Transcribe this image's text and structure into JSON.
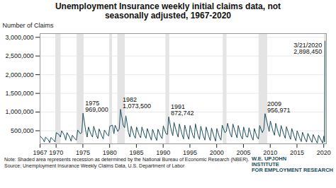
{
  "chart_data": {
    "type": "line",
    "title": "Unemployment Insurance weekly initial claims data, not seasonally adjusted, 1967-2020",
    "y_label": "Number of Claims",
    "notes": [
      "Note: Shaded area represents recession as determined by the National Bureau of Economic Research (NBER).",
      "Source: Unemployment Insurance Weekly Claims Data, U.S. Department of Labor"
    ],
    "logo": [
      "W.E. UPJOHN",
      "INSTITUTE",
      "FOR EMPLOYMENT RESEARCH"
    ],
    "color": "#1d4e5c",
    "grid": true,
    "xlim": [
      1967,
      2020.5
    ],
    "xticks": [
      1967,
      1970,
      1975,
      1980,
      1985,
      1990,
      1995,
      2000,
      2005,
      2010,
      2015,
      2020
    ],
    "ylim": [
      150000,
      3100000
    ],
    "yticks": [
      {
        "value": 500000,
        "label": "500,000"
      },
      {
        "value": 1000000,
        "label": "1,000,000"
      },
      {
        "value": 1500000,
        "label": "1,500,000"
      },
      {
        "value": 2000000,
        "label": "2,000,000"
      },
      {
        "value": 2500000,
        "label": "2,500,000"
      },
      {
        "value": 3000000,
        "label": "3,000,000"
      }
    ],
    "recessions": [
      [
        1969.9,
        1970.9
      ],
      [
        1973.9,
        1975.2
      ],
      [
        1980.0,
        1980.5
      ],
      [
        1981.5,
        1982.9
      ],
      [
        1990.5,
        1991.2
      ],
      [
        2001.2,
        2001.9
      ],
      [
        2007.9,
        2009.5
      ],
      [
        2020.1,
        2020.5
      ]
    ],
    "annotations": [
      {
        "x": 1975.03,
        "y": 969000,
        "label": "1975",
        "value_label": "969,000"
      },
      {
        "x": 1982.03,
        "y": 1073500,
        "label": "1982",
        "value_label": "1,073,500"
      },
      {
        "x": 1991.03,
        "y": 872742,
        "label": "1991",
        "value_label": "872,742"
      },
      {
        "x": 2009.03,
        "y": 956971,
        "label": "2009",
        "value_label": "956,971"
      },
      {
        "x": 2020.22,
        "y": 2898450,
        "label": "3/21/2020",
        "value_label": "2,898,450"
      }
    ],
    "x": [
      1967.03,
      1967.53,
      1967.8,
      1968.03,
      1968.53,
      1968.8,
      1969.03,
      1969.53,
      1969.8,
      1970.03,
      1970.53,
      1970.8,
      1971.03,
      1971.53,
      1971.8,
      1972.03,
      1972.53,
      1972.8,
      1973.03,
      1973.53,
      1973.8,
      1974.03,
      1974.53,
      1974.8,
      1975.03,
      1975.53,
      1975.8,
      1976.03,
      1976.53,
      1976.8,
      1977.03,
      1977.53,
      1977.8,
      1978.03,
      1978.53,
      1978.8,
      1979.03,
      1979.53,
      1979.8,
      1980.03,
      1980.53,
      1980.8,
      1981.03,
      1981.53,
      1981.8,
      1982.03,
      1982.53,
      1982.8,
      1983.03,
      1983.53,
      1983.8,
      1984.03,
      1984.53,
      1984.8,
      1985.03,
      1985.53,
      1985.8,
      1986.03,
      1986.53,
      1986.8,
      1987.03,
      1987.53,
      1987.8,
      1988.03,
      1988.53,
      1988.8,
      1989.03,
      1989.53,
      1989.8,
      1990.03,
      1990.53,
      1990.8,
      1991.03,
      1991.53,
      1991.8,
      1992.03,
      1992.53,
      1992.8,
      1993.03,
      1993.53,
      1993.8,
      1994.03,
      1994.53,
      1994.8,
      1995.03,
      1995.53,
      1995.8,
      1996.03,
      1996.53,
      1996.8,
      1997.03,
      1997.53,
      1997.8,
      1998.03,
      1998.53,
      1998.8,
      1999.03,
      1999.53,
      1999.8,
      2000.03,
      2000.53,
      2000.8,
      2001.03,
      2001.53,
      2001.8,
      2002.03,
      2002.53,
      2002.8,
      2003.03,
      2003.53,
      2003.8,
      2004.03,
      2004.53,
      2004.8,
      2005.03,
      2005.53,
      2005.8,
      2006.03,
      2006.53,
      2006.8,
      2007.03,
      2007.53,
      2007.8,
      2008.03,
      2008.53,
      2008.8,
      2009.03,
      2009.53,
      2009.8,
      2010.03,
      2010.53,
      2010.8,
      2011.03,
      2011.53,
      2011.8,
      2012.03,
      2012.53,
      2012.8,
      2013.03,
      2013.53,
      2013.8,
      2014.03,
      2014.53,
      2014.8,
      2015.03,
      2015.53,
      2015.8,
      2016.03,
      2016.53,
      2016.8,
      2017.03,
      2017.53,
      2017.8,
      2018.03,
      2018.53,
      2018.8,
      2019.03,
      2019.53,
      2019.8,
      2020.03,
      2020.15,
      2020.22
    ],
    "values": [
      350000,
      280000,
      200000,
      330000,
      260000,
      180000,
      320000,
      250000,
      200000,
      450000,
      400000,
      330000,
      500000,
      380000,
      250000,
      450000,
      330000,
      220000,
      380000,
      280000,
      250000,
      520000,
      420000,
      450000,
      969000,
      500000,
      330000,
      600000,
      400000,
      330000,
      620000,
      380000,
      290000,
      550000,
      360000,
      280000,
      520000,
      400000,
      360000,
      620000,
      650000,
      420000,
      650000,
      480000,
      550000,
      1073500,
      650000,
      580000,
      900000,
      450000,
      330000,
      620000,
      380000,
      300000,
      600000,
      380000,
      310000,
      600000,
      380000,
      300000,
      560000,
      350000,
      250000,
      540000,
      330000,
      240000,
      540000,
      350000,
      290000,
      630000,
      420000,
      400000,
      872742,
      500000,
      370000,
      720000,
      450000,
      330000,
      680000,
      400000,
      280000,
      650000,
      370000,
      270000,
      640000,
      380000,
      300000,
      680000,
      370000,
      270000,
      620000,
      350000,
      250000,
      600000,
      340000,
      240000,
      570000,
      330000,
      220000,
      560000,
      320000,
      250000,
      650000,
      450000,
      480000,
      700000,
      420000,
      330000,
      680000,
      430000,
      310000,
      640000,
      360000,
      280000,
      600000,
      340000,
      330000,
      580000,
      330000,
      250000,
      560000,
      330000,
      280000,
      640000,
      450000,
      540000,
      956971,
      650000,
      480000,
      760000,
      480000,
      380000,
      700000,
      430000,
      340000,
      640000,
      400000,
      300000,
      610000,
      380000,
      270000,
      560000,
      330000,
      230000,
      500000,
      300000,
      210000,
      460000,
      270000,
      200000,
      430000,
      260000,
      190000,
      400000,
      240000,
      170000,
      380000,
      240000,
      170000,
      360000,
      200000,
      2898450
    ]
  }
}
